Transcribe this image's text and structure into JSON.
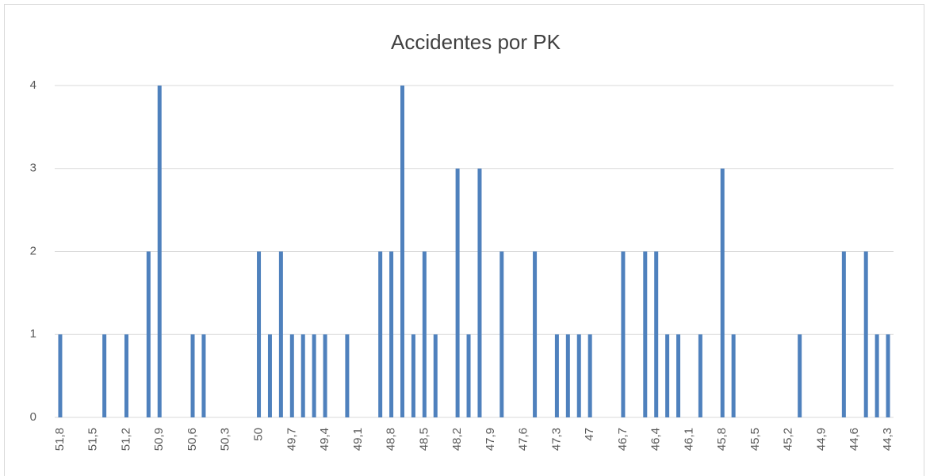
{
  "chart_data": {
    "type": "bar",
    "title": "Accidentes por PK",
    "categories": [
      "51,8",
      null,
      null,
      "51,5",
      null,
      null,
      "51,2",
      null,
      null,
      "50,9",
      null,
      null,
      "50,6",
      null,
      null,
      "50,3",
      null,
      null,
      "50",
      null,
      null,
      "49,7",
      null,
      null,
      "49,4",
      null,
      null,
      "49,1",
      null,
      null,
      "48,8",
      null,
      null,
      "48,5",
      null,
      null,
      "48,2",
      null,
      null,
      "47,9",
      null,
      null,
      "47,6",
      null,
      null,
      "47,3",
      null,
      null,
      "47",
      null,
      null,
      "46,7",
      null,
      null,
      "46,4",
      null,
      null,
      "46,1",
      null,
      null,
      "45,8",
      null,
      null,
      "45,5",
      null,
      null,
      "45,2",
      null,
      null,
      "44,9",
      null,
      null,
      "44,6",
      null,
      null,
      "44,3"
    ],
    "values": [
      1,
      0,
      0,
      0,
      1,
      0,
      1,
      0,
      2,
      4,
      0,
      0,
      1,
      1,
      0,
      0,
      0,
      0,
      2,
      1,
      2,
      1,
      1,
      1,
      1,
      0,
      1,
      0,
      0,
      2,
      2,
      4,
      1,
      2,
      1,
      0,
      3,
      1,
      3,
      0,
      2,
      0,
      0,
      2,
      0,
      1,
      1,
      1,
      1,
      0,
      0,
      2,
      0,
      2,
      2,
      1,
      1,
      0,
      1,
      0,
      3,
      1,
      0,
      0,
      0,
      0,
      0,
      1,
      0,
      0,
      0,
      2,
      0,
      2,
      1,
      1
    ],
    "color": "#4f81bd",
    "ylim": [
      0,
      4
    ],
    "yticks": [
      0,
      1,
      2,
      3,
      4
    ],
    "grid": true
  }
}
